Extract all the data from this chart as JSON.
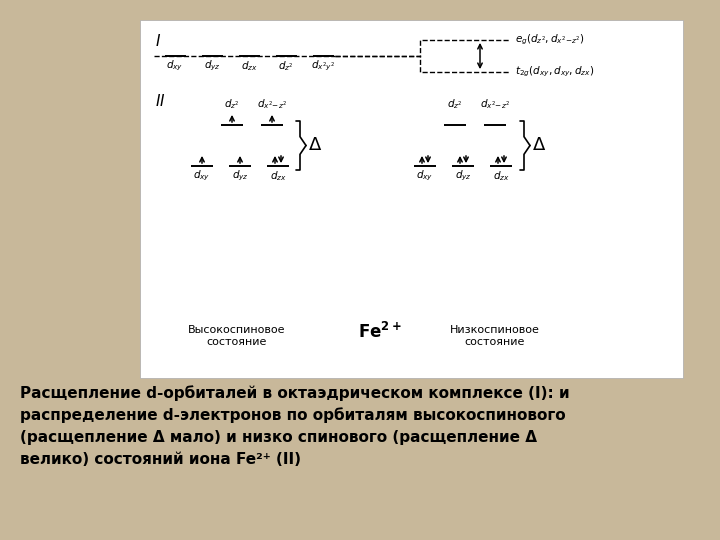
{
  "bg_color": "#c8b89a",
  "white_box_color": "#ffffff",
  "black": "#000000",
  "section_I": "I",
  "section_II": "II",
  "caption": "Расщепление d-орбиталей в октаэдрическом комплексе (I): и\nраспределение d-электронов по орбиталям высокоспинового\n(расщепление Δ мало) и низко спинового (расщепление Δ\nвелико) состояний иона Fe²⁺ (II)",
  "eg_text": "$e_g(d_{z^2},d_{x^2\\text{-}z^2})$",
  "t2g_text": "$t_{2g}(d_{xy},d_{xy},d_{zx})$",
  "high_spin_text": "Высокоспиновое\nсостояние",
  "low_spin_text": "Низкоспиновое\nсостояние",
  "fe_text": "Fe$^{2+}$"
}
